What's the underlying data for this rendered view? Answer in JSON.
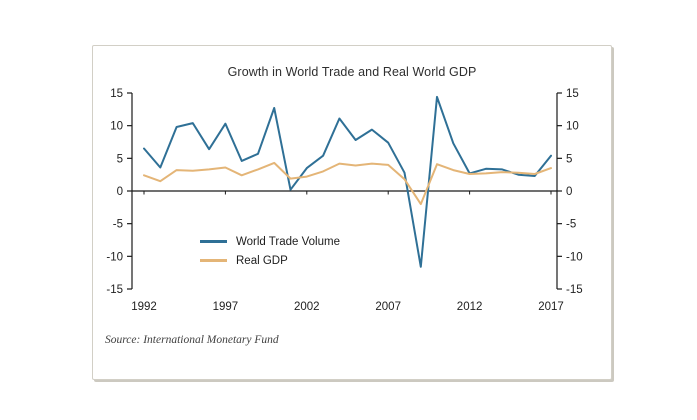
{
  "chart_data": {
    "type": "line",
    "title": "Growth in World Trade and Real World GDP",
    "source": "Source: International Monetary Fund",
    "x": [
      1992,
      1993,
      1994,
      1995,
      1996,
      1997,
      1998,
      1999,
      2000,
      2001,
      2002,
      2003,
      2004,
      2005,
      2006,
      2007,
      2008,
      2009,
      2010,
      2011,
      2012,
      2013,
      2014,
      2015,
      2016,
      2017
    ],
    "x_ticks": [
      1992,
      1997,
      2002,
      2007,
      2012,
      2017
    ],
    "y_ticks": [
      15,
      10,
      5,
      0,
      -5,
      -10,
      -15
    ],
    "ylim": [
      -15,
      15
    ],
    "grid": false,
    "dual_axis_labels": true,
    "legend_position": "inside lower-left",
    "axis_color": "#1a1a1a",
    "series": [
      {
        "name": "World Trade Volume",
        "color": "#2f7096",
        "values": [
          6.5,
          3.6,
          9.8,
          10.4,
          6.4,
          10.3,
          4.6,
          5.7,
          12.7,
          0.2,
          3.5,
          5.4,
          11.1,
          7.8,
          9.4,
          7.4,
          2.8,
          -11.6,
          14.4,
          7.3,
          2.7,
          3.4,
          3.3,
          2.5,
          2.3,
          5.4
        ]
      },
      {
        "name": "Real GDP",
        "color": "#e4b577",
        "values": [
          2.4,
          1.5,
          3.2,
          3.1,
          3.3,
          3.6,
          2.4,
          3.3,
          4.3,
          1.9,
          2.2,
          3.0,
          4.2,
          3.9,
          4.2,
          4.0,
          1.8,
          -2.0,
          4.1,
          3.2,
          2.6,
          2.7,
          2.9,
          2.8,
          2.6,
          3.5
        ]
      }
    ]
  }
}
